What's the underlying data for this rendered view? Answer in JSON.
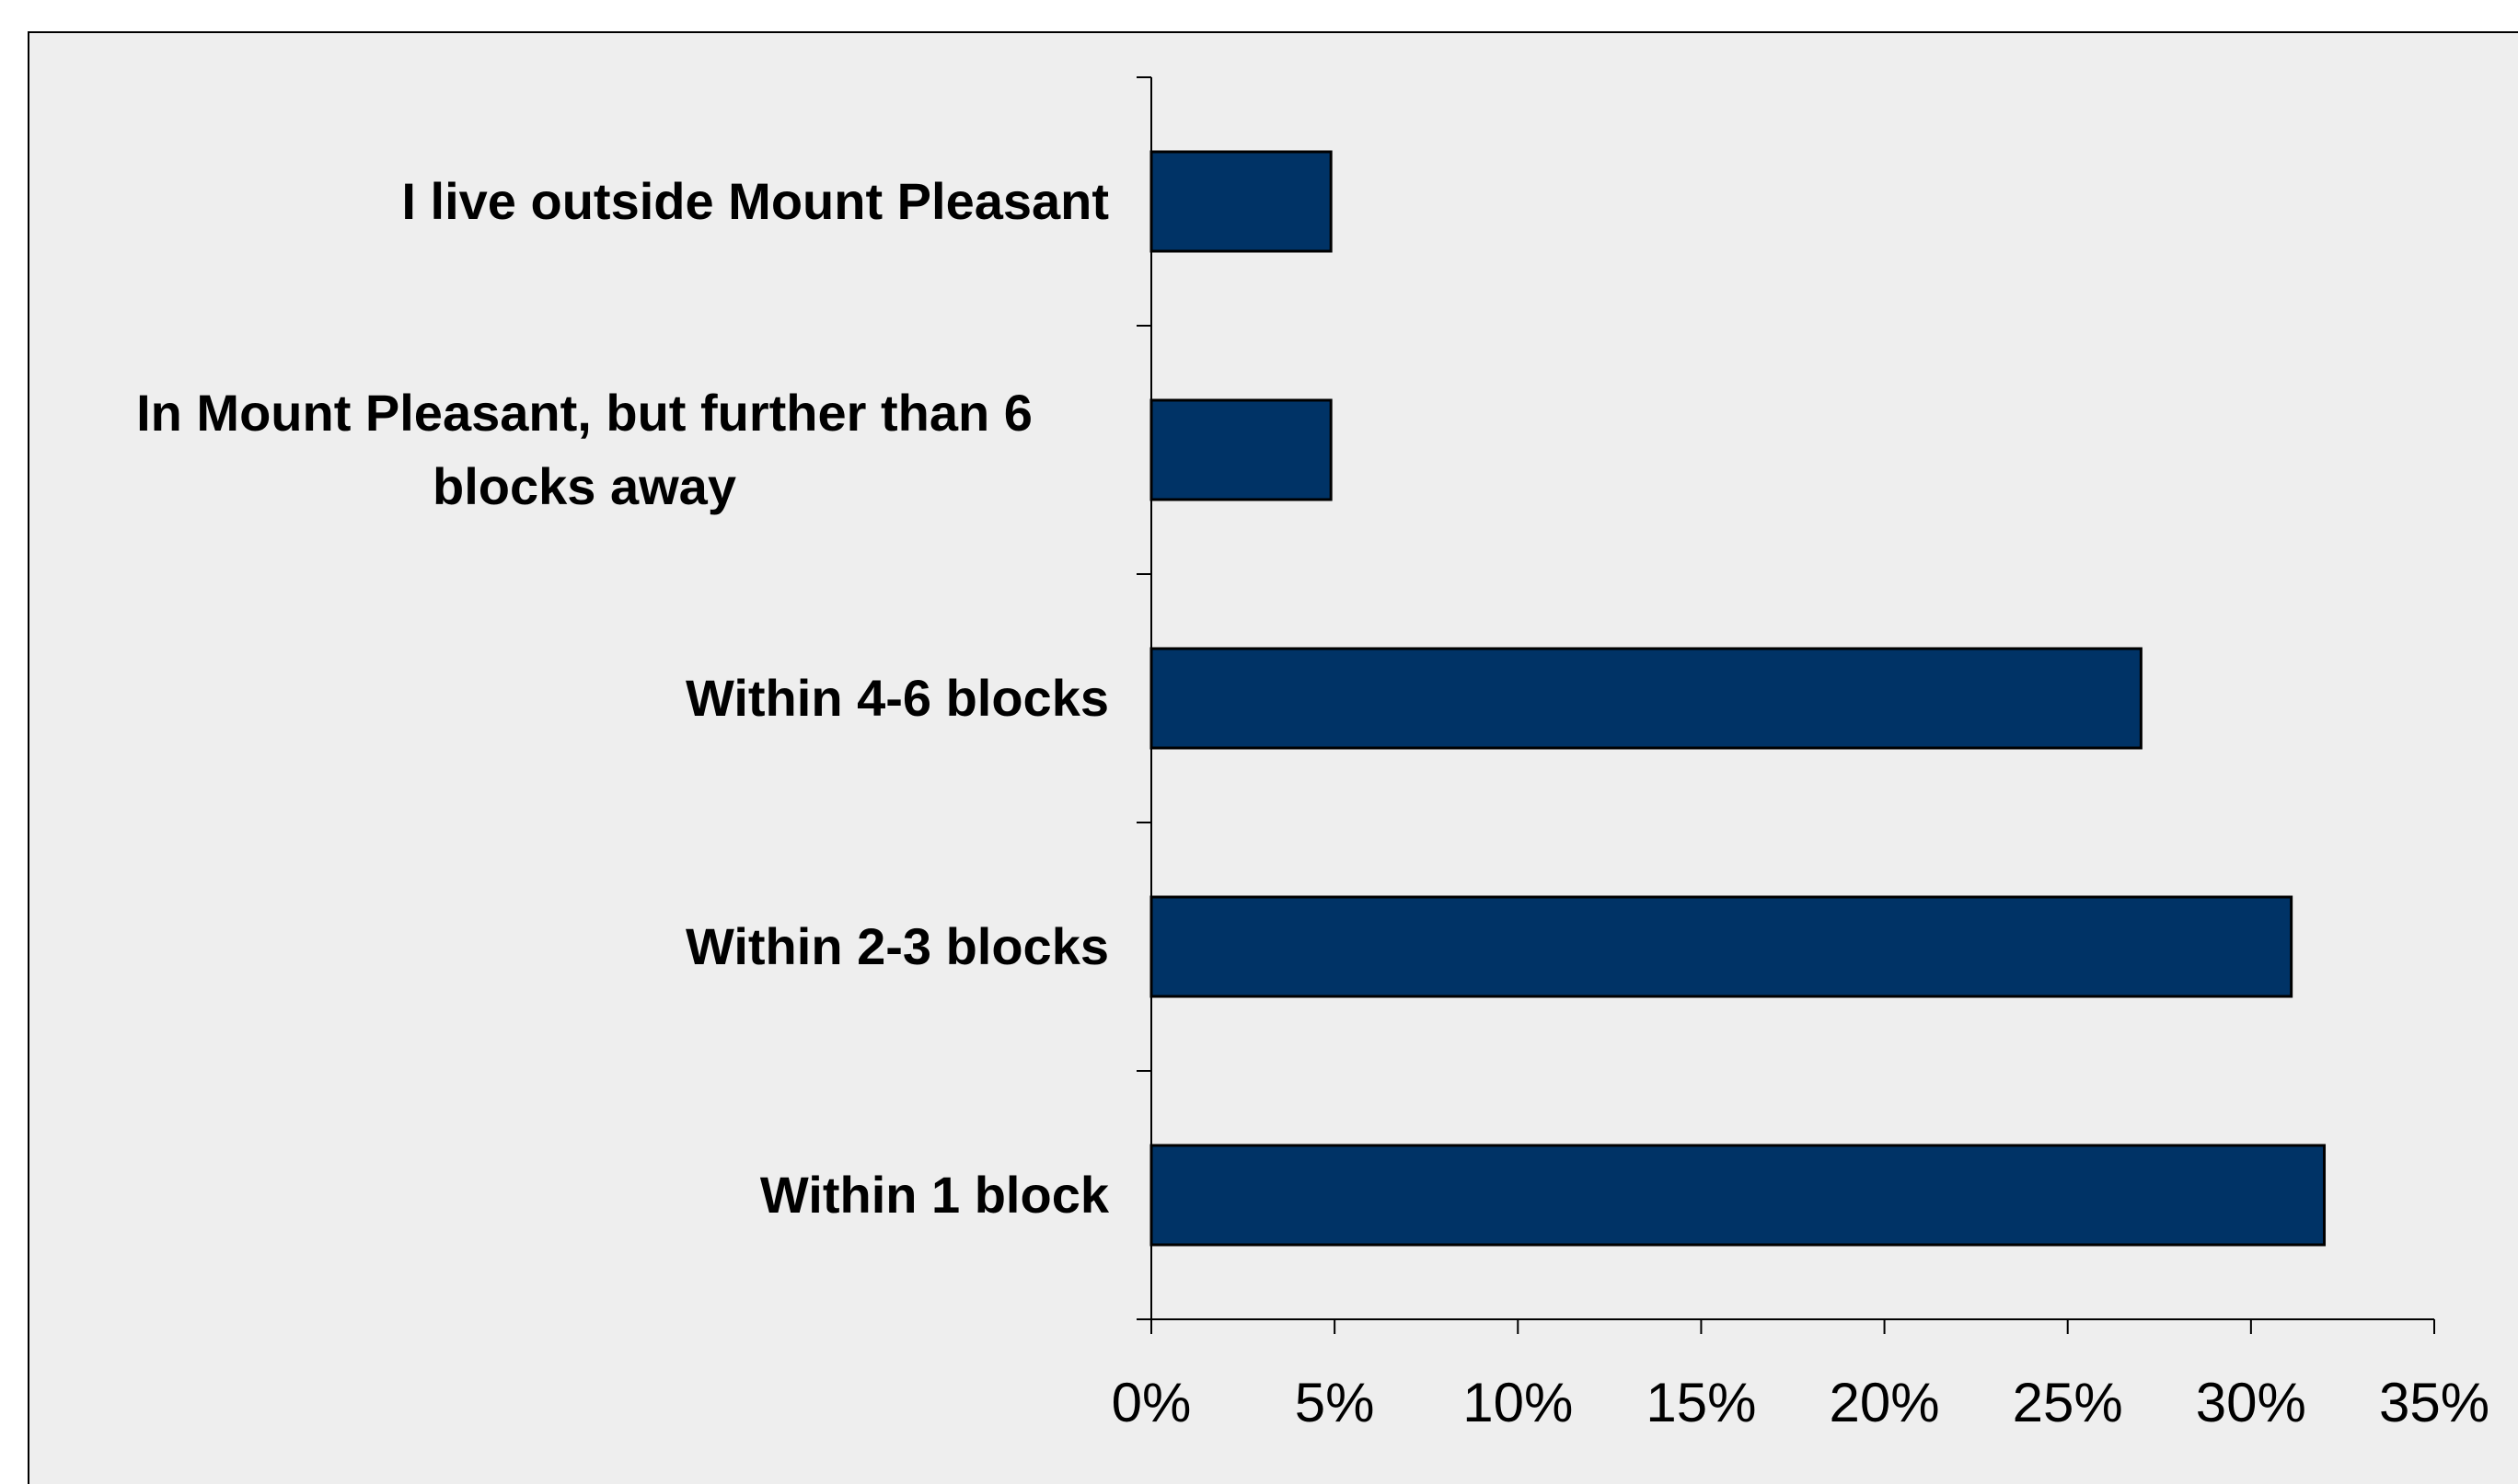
{
  "chart_data": {
    "type": "bar",
    "orientation": "horizontal",
    "categories": [
      "I live outside Mount Pleasant",
      "In Mount Pleasant, but further than 6 blocks away",
      "Within 4-6 blocks",
      "Within 2-3 blocks",
      "Within 1 block"
    ],
    "values": [
      4.9,
      4.9,
      27,
      31.1,
      32
    ],
    "color": "#003366",
    "xlim": [
      0,
      35
    ],
    "xticks": [
      {
        "value": 0,
        "label": "0%"
      },
      {
        "value": 5,
        "label": "5%"
      },
      {
        "value": 10,
        "label": "10%"
      },
      {
        "value": 15,
        "label": "15%"
      },
      {
        "value": 20,
        "label": "20%"
      },
      {
        "value": 25,
        "label": "25%"
      },
      {
        "value": 30,
        "label": "30%"
      },
      {
        "value": 35,
        "label": "35%"
      }
    ],
    "grid": false
  }
}
